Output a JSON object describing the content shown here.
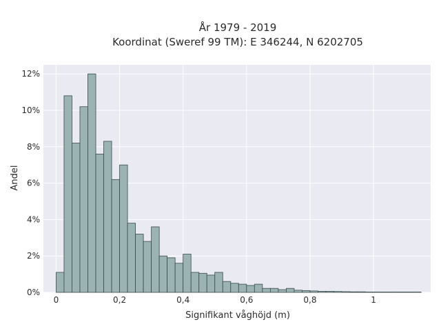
{
  "chart_data": {
    "type": "bar",
    "title": "År 1979 - 2019",
    "subtitle": "Koordinat (Sweref 99 TM): E 346244, N 6202705",
    "xlabel": "Signifikant våghöjd (m)",
    "ylabel": "Andel",
    "xlim": [
      -0.04,
      1.18
    ],
    "ylim": [
      0,
      0.125
    ],
    "bin_width": 0.025,
    "bin_start": 0.0,
    "x_ticks": [
      {
        "value": 0,
        "label": "0"
      },
      {
        "value": 0.2,
        "label": "0,2"
      },
      {
        "value": 0.4,
        "label": "0,4"
      },
      {
        "value": 0.6,
        "label": "0,6"
      },
      {
        "value": 0.8,
        "label": "0,8"
      },
      {
        "value": 1.0,
        "label": "1"
      }
    ],
    "y_ticks": [
      {
        "value": 0,
        "label": "0%"
      },
      {
        "value": 0.02,
        "label": "2%"
      },
      {
        "value": 0.04,
        "label": "4%"
      },
      {
        "value": 0.06,
        "label": "6%"
      },
      {
        "value": 0.08,
        "label": "8%"
      },
      {
        "value": 0.1,
        "label": "10%"
      },
      {
        "value": 0.12,
        "label": "12%"
      }
    ],
    "values": [
      0.011,
      0.108,
      0.082,
      0.102,
      0.12,
      0.076,
      0.083,
      0.062,
      0.07,
      0.038,
      0.032,
      0.028,
      0.036,
      0.02,
      0.019,
      0.016,
      0.021,
      0.011,
      0.0105,
      0.0095,
      0.011,
      0.006,
      0.005,
      0.0045,
      0.0038,
      0.0045,
      0.0022,
      0.0022,
      0.0015,
      0.0022,
      0.0012,
      0.001,
      0.0008,
      0.0006,
      0.0006,
      0.0005,
      0.0004,
      0.0003,
      0.0003,
      0.0002,
      0.0002,
      0.0002,
      0.0002,
      0.0002,
      0.0002,
      0.0002
    ],
    "grid": true,
    "legend": "none",
    "colors": {
      "bar_fill": "#9bb3b2",
      "bar_stroke": "#3a4a4a",
      "plot_bg": "#eaeaf2",
      "grid": "#ffffff"
    }
  }
}
